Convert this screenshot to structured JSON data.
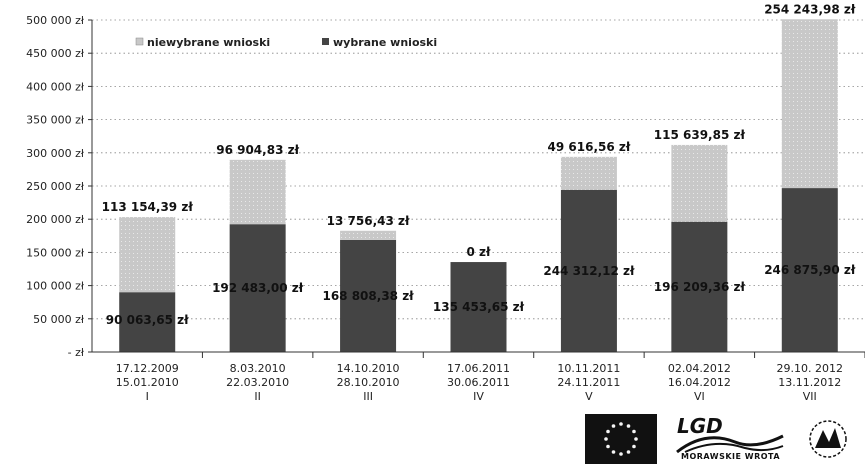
{
  "chart_data": {
    "type": "bar",
    "stacked": true,
    "categories": [
      {
        "date1": "17.12.2009",
        "date2": "15.01.2010",
        "roman": "I"
      },
      {
        "date1": "8.03.2010",
        "date2": "22.03.2010",
        "roman": "II"
      },
      {
        "date1": "14.10.2010",
        "date2": "28.10.2010",
        "roman": "III"
      },
      {
        "date1": "17.06.2011",
        "date2": "30.06.2011",
        "roman": "IV"
      },
      {
        "date1": "10.11.2011",
        "date2": "24.11.2011",
        "roman": "V"
      },
      {
        "date1": "02.04.2012",
        "date2": "16.04.2012",
        "roman": "VI"
      },
      {
        "date1": "29.10. 2012",
        "date2": "13.11.2012",
        "roman": "VII"
      }
    ],
    "series": [
      {
        "name": "wybrane wnioski",
        "color": "#444444",
        "values": [
          90063.65,
          192483.0,
          168808.38,
          135453.65,
          244312.12,
          196209.36,
          246875.9
        ],
        "labels": [
          "90 063,65 zł",
          "192 483,00 zł",
          "168 808,38 zł",
          "135 453,65 zł",
          "244 312,12 zł",
          "196 209,36 zł",
          "246 875,90 zł"
        ]
      },
      {
        "name": "niewybrane wnioski",
        "color": "#c8c8c8",
        "values": [
          113154.39,
          96904.83,
          13756.43,
          0,
          49616.56,
          115639.85,
          254243.98
        ],
        "labels": [
          "113 154,39 zł",
          "96 904,83 zł",
          "13 756,43 zł",
          "0 zł",
          "49 616,56 zł",
          "115 639,85 zł",
          "254 243,98 zł"
        ]
      }
    ],
    "yticks": [
      "- zł",
      "50 000 zł",
      "100 000 zł",
      "150 000 zł",
      "200 000 zł",
      "250 000 zł",
      "300 000 zł",
      "350 000 zł",
      "400 000 zł",
      "450 000 zł",
      "500 000 zł"
    ],
    "ylim": [
      0,
      500000
    ],
    "ystep": 50000,
    "grid": true,
    "legend_position": "top-left",
    "title": "",
    "xlabel": "",
    "ylabel": ""
  },
  "logos": {
    "lgd_text": "LGD",
    "lgd_subtitle": "MORAWSKIE WROTA",
    "icons": [
      "eu-flag-icon",
      "lgd-logo-icon",
      "leader-logo-icon"
    ]
  }
}
